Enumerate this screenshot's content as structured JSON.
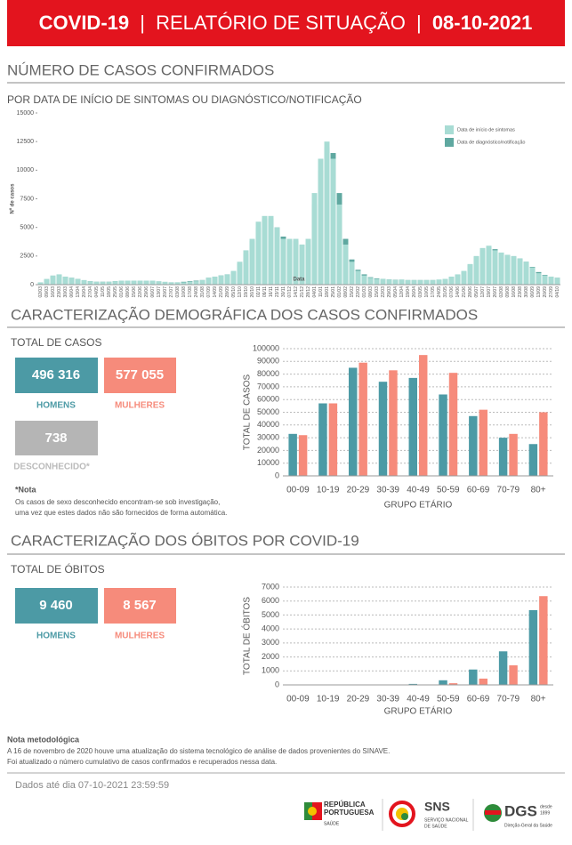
{
  "header": {
    "title": "COVID-19",
    "separator": "|",
    "subtitle": "RELATÓRIO DE SITUAÇÃO",
    "date": "08-10-2021"
  },
  "cases": {
    "title": "NÚMERO DE CASOS CONFIRMADOS"
  },
  "demographics": {
    "title": "CARACTERIZAÇÃO DEMOGRÁFICA DOS CASOS CONFIRMADOS",
    "total_label": "TOTAL DE CASOS",
    "men": "496 316",
    "women": "577 055",
    "unknown": "738",
    "unknown_label": "DESCONHECIDO*",
    "note_title": "*Nota",
    "note_lines": [
      "Os casos de sexo desconhecido encontram-se sob investigação,",
      "uma vez que estes dados não são fornecidos de forma automática."
    ]
  },
  "deaths": {
    "title": "CARACTERIZAÇÃO DOS ÓBITOS POR COVID-19",
    "total_label": "TOTAL DE ÓBITOS",
    "men": "9 460",
    "women": "8 567"
  },
  "methodology": {
    "title": "Nota metodológica",
    "lines": [
      "A 16 de novembro de 2020 houve uma atualização do sistema tecnológico de análise de dados provenientes do SINAVE.",
      "Foi atualizado o número cumulativo de casos confirmados e recuperados nessa data."
    ]
  },
  "footer": {
    "updated": "Dados até dia 07-10-2021 23:59:59"
  },
  "logos": {
    "republica": [
      "REPÚBLICA",
      "PORTUGUESA"
    ],
    "republica_sub": "SAÚDE",
    "sns": "SNS",
    "sns_sub": [
      "SERVIÇO NACIONAL",
      "DE SAÚDE"
    ],
    "dgs": "DGS",
    "dgs_sub": "Direção-Geral da Saúde",
    "dgs_since": [
      "desde",
      "1899"
    ]
  },
  "chart_data": [
    {
      "type": "bar",
      "barmode": "overlay",
      "subtitle": "POR DATA DE INÍCIO DE SINTOMAS OU DIAGNÓSTICO/NOTIFICAÇÃO",
      "y_label": "Nº de casos",
      "x_label": "Data",
      "legend": "top-right",
      "grid": false,
      "categories": [
        "02/03",
        "09/03",
        "16/03",
        "23/03",
        "30/03",
        "06/04",
        "13/04",
        "20/04",
        "27/04",
        "04/05",
        "11/05",
        "18/05",
        "25/05",
        "01/06",
        "08/06",
        "15/06",
        "22/06",
        "29/06",
        "06/07",
        "13/07",
        "20/07",
        "27/07",
        "03/08",
        "10/08",
        "17/08",
        "24/08",
        "31/08",
        "07/09",
        "14/09",
        "21/09",
        "28/09",
        "05/10",
        "12/10",
        "19/10",
        "26/10",
        "02/11",
        "09/11",
        "16/11",
        "23/11",
        "30/11",
        "07/12",
        "14/12",
        "21/12",
        "28/12",
        "04/01",
        "11/01",
        "18/01",
        "25/01",
        "01/02",
        "08/02",
        "15/02",
        "22/02",
        "01/03",
        "08/03",
        "15/03",
        "22/03",
        "29/03",
        "05/04",
        "12/04",
        "19/04",
        "26/04",
        "03/05",
        "10/05",
        "17/05",
        "24/05",
        "31/05",
        "07/06",
        "14/06",
        "21/06",
        "28/06",
        "05/07",
        "12/07",
        "19/07",
        "26/07",
        "02/08",
        "09/08",
        "16/08",
        "23/08",
        "30/08",
        "06/09",
        "13/09",
        "20/09",
        "27/09",
        "04/10"
      ],
      "series": [
        {
          "name": "Data de início de sintomas",
          "color": "#a8dcd4",
          "values": [
            200,
            500,
            800,
            900,
            700,
            600,
            500,
            400,
            300,
            250,
            250,
            250,
            300,
            350,
            350,
            350,
            350,
            350,
            350,
            300,
            250,
            200,
            200,
            200,
            250,
            300,
            400,
            600,
            700,
            800,
            900,
            1200,
            2000,
            3000,
            4000,
            5500,
            6000,
            6000,
            5000,
            4000,
            4000,
            4000,
            3500,
            4000,
            8000,
            11000,
            12500,
            11000,
            7000,
            3500,
            2000,
            1200,
            800,
            600,
            500,
            500,
            450,
            400,
            450,
            400,
            400,
            400,
            400,
            400,
            450,
            500,
            700,
            900,
            1200,
            1800,
            2500,
            3200,
            3400,
            3000,
            2800,
            2600,
            2500,
            2300,
            2000,
            1500,
            1000,
            800,
            700,
            600
          ]
        },
        {
          "name": "Data de diagnóstico/notificação",
          "color": "#5fa8a0",
          "values": [
            100,
            400,
            700,
            800,
            700,
            600,
            500,
            350,
            300,
            250,
            250,
            250,
            300,
            350,
            350,
            350,
            350,
            300,
            300,
            250,
            200,
            200,
            200,
            250,
            300,
            350,
            400,
            600,
            700,
            800,
            900,
            1100,
            1800,
            2700,
            3800,
            5000,
            5800,
            5800,
            5000,
            4200,
            3800,
            3800,
            3500,
            3500,
            7000,
            10000,
            12000,
            11500,
            8000,
            4000,
            2200,
            1300,
            900,
            650,
            550,
            500,
            450,
            420,
            430,
            400,
            400,
            400,
            400,
            400,
            420,
            480,
            650,
            850,
            1100,
            1700,
            2400,
            3000,
            3300,
            3100,
            2800,
            2600,
            2450,
            2250,
            2000,
            1550,
            1100,
            850,
            700,
            600
          ]
        }
      ],
      "ylim": [
        0,
        15000
      ],
      "yticks": [
        0,
        2500,
        5000,
        7500,
        10000,
        12500,
        15000
      ]
    },
    {
      "type": "bar",
      "barmode": "group",
      "y_label": "TOTAL DE CASOS",
      "x_label": "GRUPO ETÁRIO",
      "legend": null,
      "grid": true,
      "categories": [
        "00-09",
        "10-19",
        "20-29",
        "30-39",
        "40-49",
        "50-59",
        "60-69",
        "70-79",
        "80+"
      ],
      "series": [
        {
          "name": "HOMENS",
          "color": "#4c9aa5",
          "values": [
            33000,
            57000,
            85000,
            74000,
            77000,
            64000,
            47000,
            30000,
            25000
          ]
        },
        {
          "name": "MULHERES",
          "color": "#f68b7b",
          "values": [
            32000,
            57000,
            89000,
            83000,
            95000,
            81000,
            52000,
            33000,
            50000
          ]
        }
      ],
      "ylim": [
        0,
        100000
      ],
      "yticks": [
        0,
        10000,
        20000,
        30000,
        40000,
        50000,
        60000,
        70000,
        80000,
        90000,
        100000
      ]
    },
    {
      "type": "bar",
      "barmode": "group",
      "y_label": "TOTAL DE ÓBITOS",
      "x_label": "GRUPO ETÁRIO",
      "legend": null,
      "grid": true,
      "categories": [
        "00-09",
        "10-19",
        "20-29",
        "30-39",
        "40-49",
        "50-59",
        "60-69",
        "70-79",
        "80+"
      ],
      "series": [
        {
          "name": "HOMENS",
          "color": "#4c9aa5",
          "values": [
            0,
            0,
            5,
            15,
            70,
            330,
            1100,
            2400,
            5350
          ]
        },
        {
          "name": "MULHERES",
          "color": "#f68b7b",
          "values": [
            0,
            0,
            5,
            10,
            30,
            120,
            450,
            1400,
            6350
          ]
        }
      ],
      "ylim": [
        0,
        7000
      ],
      "yticks": [
        0,
        1000,
        2000,
        3000,
        4000,
        5000,
        6000,
        7000
      ]
    }
  ]
}
